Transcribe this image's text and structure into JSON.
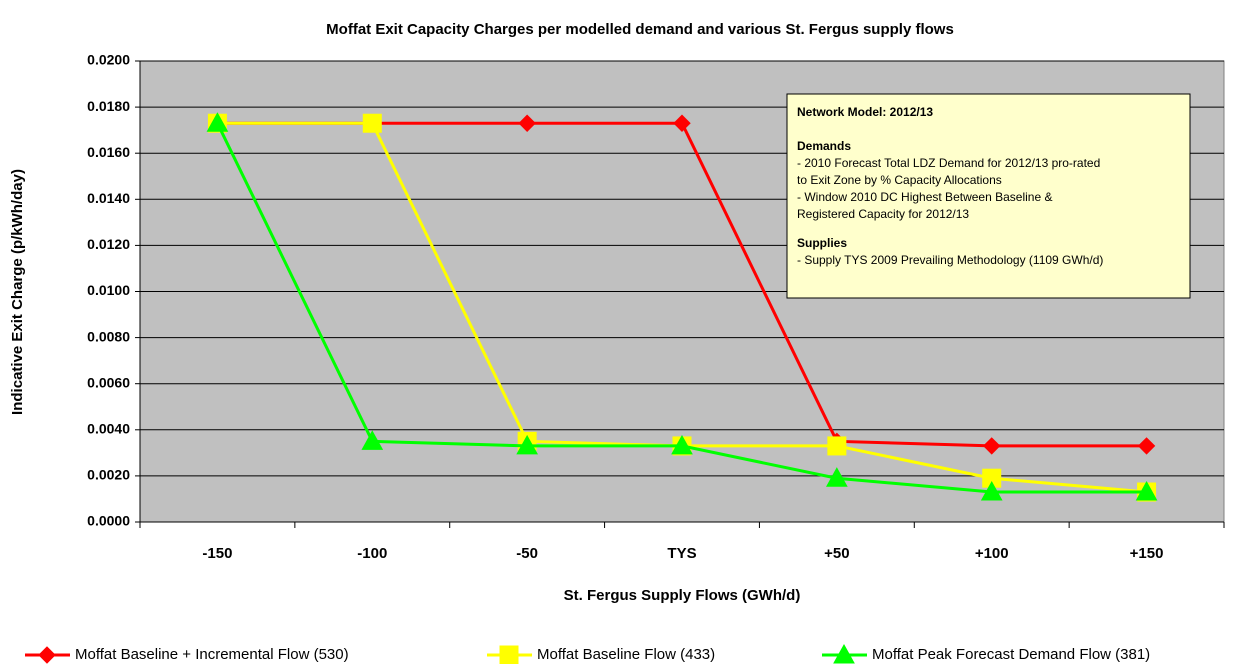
{
  "chart_data": {
    "type": "line",
    "title": "Moffat Exit Capacity Charges per modelled demand and various St. Fergus supply flows",
    "x_label": "St. Fergus Supply Flows (GWh/d)",
    "y_label": "Indicative Exit Charge (p/kWh/day)",
    "categories": [
      "-150",
      "-100",
      "-50",
      "TYS",
      "+50",
      "+100",
      "+150"
    ],
    "series": [
      {
        "name": "Moffat Baseline + Incremental Flow (530)",
        "color": "#ff0000",
        "marker": "diamond",
        "values": [
          0.0173,
          0.0173,
          0.0173,
          0.0173,
          0.0035,
          0.0033,
          0.0033
        ]
      },
      {
        "name": "Moffat Baseline Flow (433)",
        "color": "#ffff00",
        "marker": "square",
        "values": [
          0.0173,
          0.0173,
          0.0035,
          0.0033,
          0.0033,
          0.0019,
          0.0013
        ]
      },
      {
        "name": "Moffat Peak Forecast Demand Flow (381)",
        "color": "#00ff00",
        "marker": "triangle",
        "values": [
          0.0173,
          0.0035,
          0.0033,
          0.0033,
          0.0019,
          0.0013,
          0.0013
        ]
      }
    ],
    "ylim": [
      0,
      0.02
    ],
    "yticks": [
      {
        "value": 0,
        "label": "0.0000"
      },
      {
        "value": 0.002,
        "label": "0.0020"
      },
      {
        "value": 0.004,
        "label": "0.0040"
      },
      {
        "value": 0.006,
        "label": "0.0060"
      },
      {
        "value": 0.008,
        "label": "0.0080"
      },
      {
        "value": 0.01,
        "label": "0.0100"
      },
      {
        "value": 0.012,
        "label": "0.0120"
      },
      {
        "value": 0.014,
        "label": "0.0140"
      },
      {
        "value": 0.016,
        "label": "0.0160"
      },
      {
        "value": 0.018,
        "label": "0.0180"
      },
      {
        "value": 0.02,
        "label": "0.0200"
      }
    ],
    "grid": true,
    "annotation": {
      "title": "Network Model: 2012/13",
      "sections": [
        {
          "heading": "Demands",
          "lines": [
            "- 2010 Forecast Total LDZ Demand for 2012/13 pro-rated",
            "to Exit Zone by % Capacity Allocations",
            "- Window 2010 DC Highest Between Baseline &",
            "Registered Capacity for 2012/13"
          ]
        },
        {
          "heading": "Supplies",
          "lines": [
            "- Supply TYS 2009 Prevailing Methodology (1109 GWh/d)"
          ]
        }
      ]
    }
  }
}
